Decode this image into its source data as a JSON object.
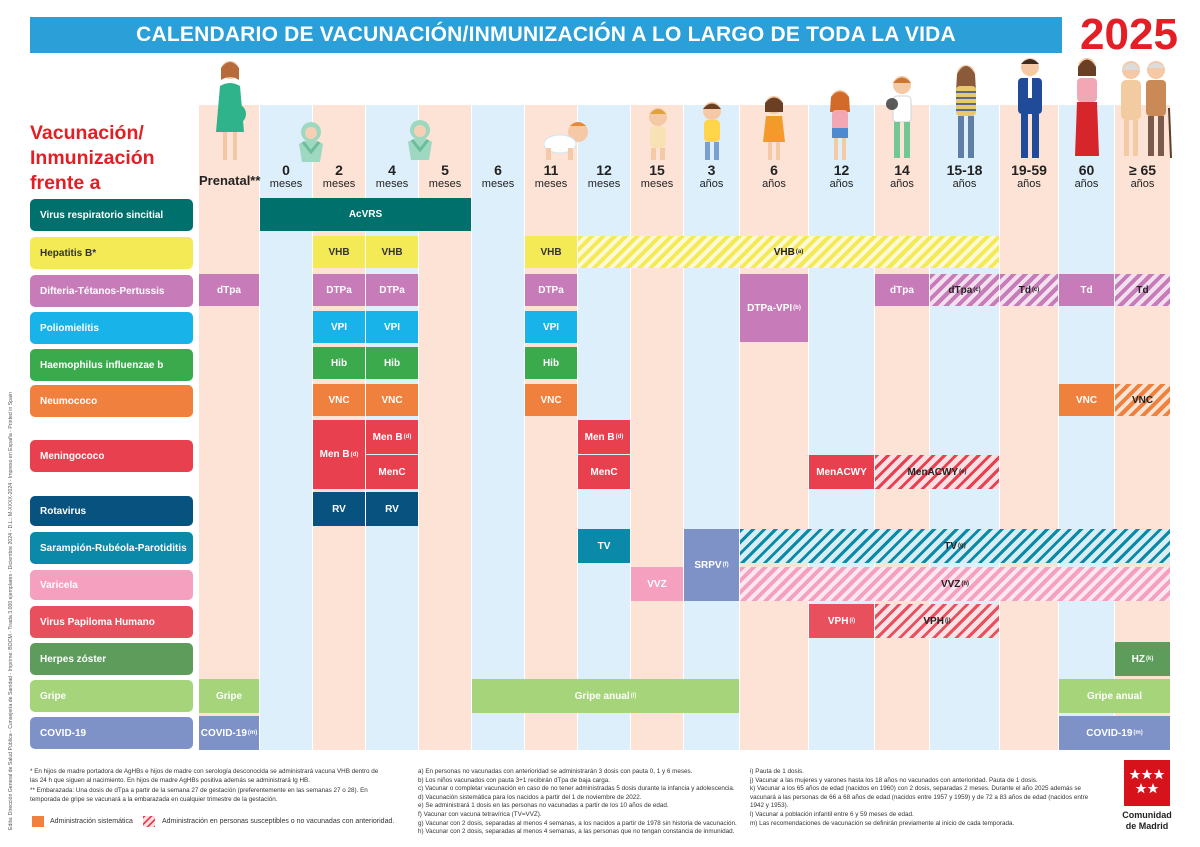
{
  "title": "CALENDARIO DE VACUNACIÓN/INMUNIZACIÓN A LO LARGO DE TODA LA VIDA",
  "year": "2025",
  "heading": [
    "Vacunación/",
    "Inmunización",
    "frente a"
  ],
  "colors": {
    "banner": "#2a9fd8",
    "red": "#e31e24",
    "col_peach": "#fde3d6",
    "col_blue": "#ddeffa"
  },
  "ages": [
    {
      "num": "Prenatal**",
      "unit": ""
    },
    {
      "num": "0",
      "unit": "meses"
    },
    {
      "num": "2",
      "unit": "meses"
    },
    {
      "num": "4",
      "unit": "meses"
    },
    {
      "num": "5",
      "unit": "meses"
    },
    {
      "num": "6",
      "unit": "meses"
    },
    {
      "num": "11",
      "unit": "meses"
    },
    {
      "num": "12",
      "unit": "meses"
    },
    {
      "num": "15",
      "unit": "meses"
    },
    {
      "num": "3",
      "unit": "años"
    },
    {
      "num": "6",
      "unit": "años"
    },
    {
      "num": "12",
      "unit": "años"
    },
    {
      "num": "14",
      "unit": "años"
    },
    {
      "num": "15-18",
      "unit": "años"
    },
    {
      "num": "19-59",
      "unit": "años"
    },
    {
      "num": "60",
      "unit": "años"
    },
    {
      "num": "≥ 65",
      "unit": "años"
    }
  ],
  "diseases": [
    {
      "label": "Virus respiratorio sincitial",
      "color": "#00706c"
    },
    {
      "label": "Hepatitis B*",
      "color": "#f4ea56",
      "dark_text": true
    },
    {
      "label": "Difteria-Tétanos-Pertussis",
      "color": "#c77cb9"
    },
    {
      "label": "Poliomielitis",
      "color": "#18b4e9"
    },
    {
      "label": "Haemophilus influenzae b",
      "color": "#3aaa4c"
    },
    {
      "label": "Neumococo",
      "color": "#f0803e"
    },
    {
      "label": "Meningococo",
      "color": "#e8404f"
    },
    {
      "label": "Rotavirus",
      "color": "#07527f"
    },
    {
      "label": "Sarampión-Rubéola-Parotiditis",
      "color": "#0a8aa8"
    },
    {
      "label": "Varicela",
      "color": "#f4a0be"
    },
    {
      "label": "Virus Papiloma Humano",
      "color": "#e8505e"
    },
    {
      "label": "Herpes zóster",
      "color": "#5e9c5c"
    },
    {
      "label": "Gripe",
      "color": "#a6d47a"
    },
    {
      "label": "COVID-19",
      "color": "#7f92c7"
    }
  ],
  "vaccines": {
    "acvrs": "AcVRS",
    "vhb": "VHB",
    "vhb_a": "VHB",
    "vhb_a_sup": "(a)",
    "dtpa_prenatal": "dTpa",
    "dtpa_infant": "DTPa",
    "dtpa_vpi": "DTPa-VPI",
    "dtpa_vpi_sup": "(b)",
    "dtpa_14": "dTpa",
    "dtpa_c": "dTpa",
    "dtpa_c_sup": "(c)",
    "td_c": "Td",
    "td_c_sup": "(c)",
    "td_60": "Td",
    "td_65": "Td",
    "vpi": "VPI",
    "hib": "Hib",
    "vnc": "VNC",
    "men_b": "Men B",
    "men_b_sup": "(d)",
    "menc": "MenC",
    "menacwy": "MenACWY",
    "menacwy_e": "MenACWY",
    "menacwy_e_sup": "(e)",
    "rv": "RV",
    "tv": "TV",
    "tv_g": "TV",
    "tv_g_sup": "(g)",
    "srpv": "SRPV",
    "srpv_sup": "(f)",
    "vvz": "VVZ",
    "vvz_h": "VVZ",
    "vvz_h_sup": "(h)",
    "vph_i": "VPH",
    "vph_i_sup": "(i)",
    "vph_j": "VPH",
    "vph_j_sup": "(j)",
    "hz": "HZ",
    "hz_sup": "(k)",
    "gripe": "Gripe",
    "gripe_anual": "Gripe anual",
    "gripe_anual_sup": "(l)",
    "gripe_anual_60": "Gripe anual",
    "covid": "COVID-19",
    "covid_sup": "(m)",
    "covid_60": "COVID-19",
    "covid_60_sup": "(m)"
  },
  "notes_left": [
    "* En hijos de madre portadora de AgHBs e hijos de madre con serología desconocida se administrará vacuna VHB dentro de las 24 h que siguen al nacimiento. En hijos de madre AgHBs positiva además se administrará Ig HB.",
    "** Embarazada: Una dosis de dTpa a partir de la semana 27 de gestación (preferentemente en las semanas 27 o 28). En temporada de gripe se vacunará a la embarazada en cualquier trimestre de la gestación."
  ],
  "legend": {
    "solid": "Administración sistemática",
    "hatched": "Administración en personas susceptibles o no vacunadas con anterioridad."
  },
  "notes_middle": [
    "a) En personas no vacunadas con anterioridad se administrarán 3 dosis con pauta 0, 1 y 6 meses.",
    "b) Los niños vacunados con pauta 3+1 recibirán dTpa de baja carga.",
    "c) Vacunar o completar vacunación en caso de no tener administradas 5 dosis durante la infancia y adolescencia.",
    "d) Vacunación sistemática para los nacidos a partir del 1 de noviembre de 2022.",
    "e) Se administrará 1 dosis en las personas no vacunadas a partir de los 10 años de edad.",
    "f) Vacunar con vacuna tetravírica (TV=VVZ).",
    "g) Vacunar con 2 dosis, separadas al menos 4 semanas, a los nacidos a partir de 1978 sin historia de vacunación.",
    "h) Vacunar con 2 dosis, separadas al menos 4 semanas, a las personas que no tengan constancia de inmunidad."
  ],
  "notes_right": [
    "i) Pauta de 1 dosis.",
    "j) Vacunar a las mujeres y varones hasta los 18 años no vacunados con anterioridad. Pauta de 1 dosis.",
    "k) Vacunar a los 65 años de edad (nacidos en 1960) con 2 dosis, separadas 2 meses. Durante el año 2025 además se vacunará a las personas de 66 a 68 años de edad (nacidos entre 1957 y 1959) y de 72 a 83 años de edad (nacidos entre 1942 y 1953).",
    "l) Vacunar a población infantil entre 6 y 59 meses de edad.",
    "m) Las recomendaciones de vacunación se definirán previamente al inicio de cada temporada."
  ],
  "side_text": "Edita: Dirección General de Salud Pública - Consejería de Sanidad - Imprime: BOCM - Tirada 3.000 ejemplares - Diciembre 2024 - D.L.: M-XXXX-2024 - Impreso en España - Printed in Spain",
  "logo_text": [
    "Comunidad",
    "de Madrid"
  ]
}
